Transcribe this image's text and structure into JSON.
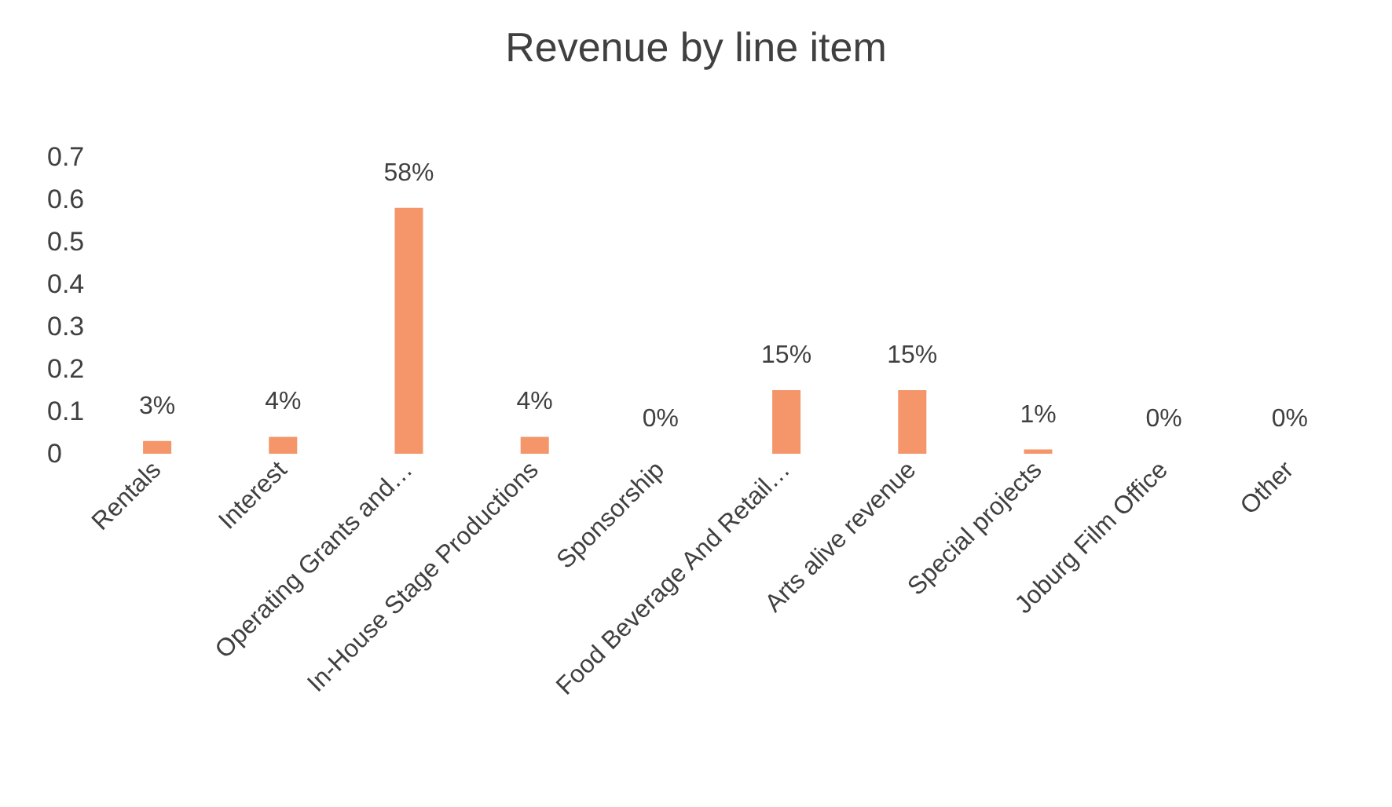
{
  "chart_data": {
    "type": "bar",
    "title": "Revenue by line item",
    "categories": [
      "Rentals",
      "Interest",
      "Operating Grants and…",
      "In-House Stage Productions",
      "Sponsorship",
      "Food Beverage And Retail…",
      "Arts alive revenue",
      "Special projects",
      "Joburg Film Office",
      "Other"
    ],
    "values": [
      0.03,
      0.04,
      0.58,
      0.04,
      0,
      0.15,
      0.15,
      0.01,
      0,
      0
    ],
    "value_labels": [
      "3%",
      "4%",
      "58%",
      "4%",
      "0%",
      "15%",
      "15%",
      "1%",
      "0%",
      "0%"
    ],
    "color": "#f4956a",
    "ylim": [
      0,
      0.7
    ],
    "yticks": [
      0,
      0.1,
      0.2,
      0.3,
      0.4,
      0.5,
      0.6,
      0.7
    ],
    "grid": false
  }
}
